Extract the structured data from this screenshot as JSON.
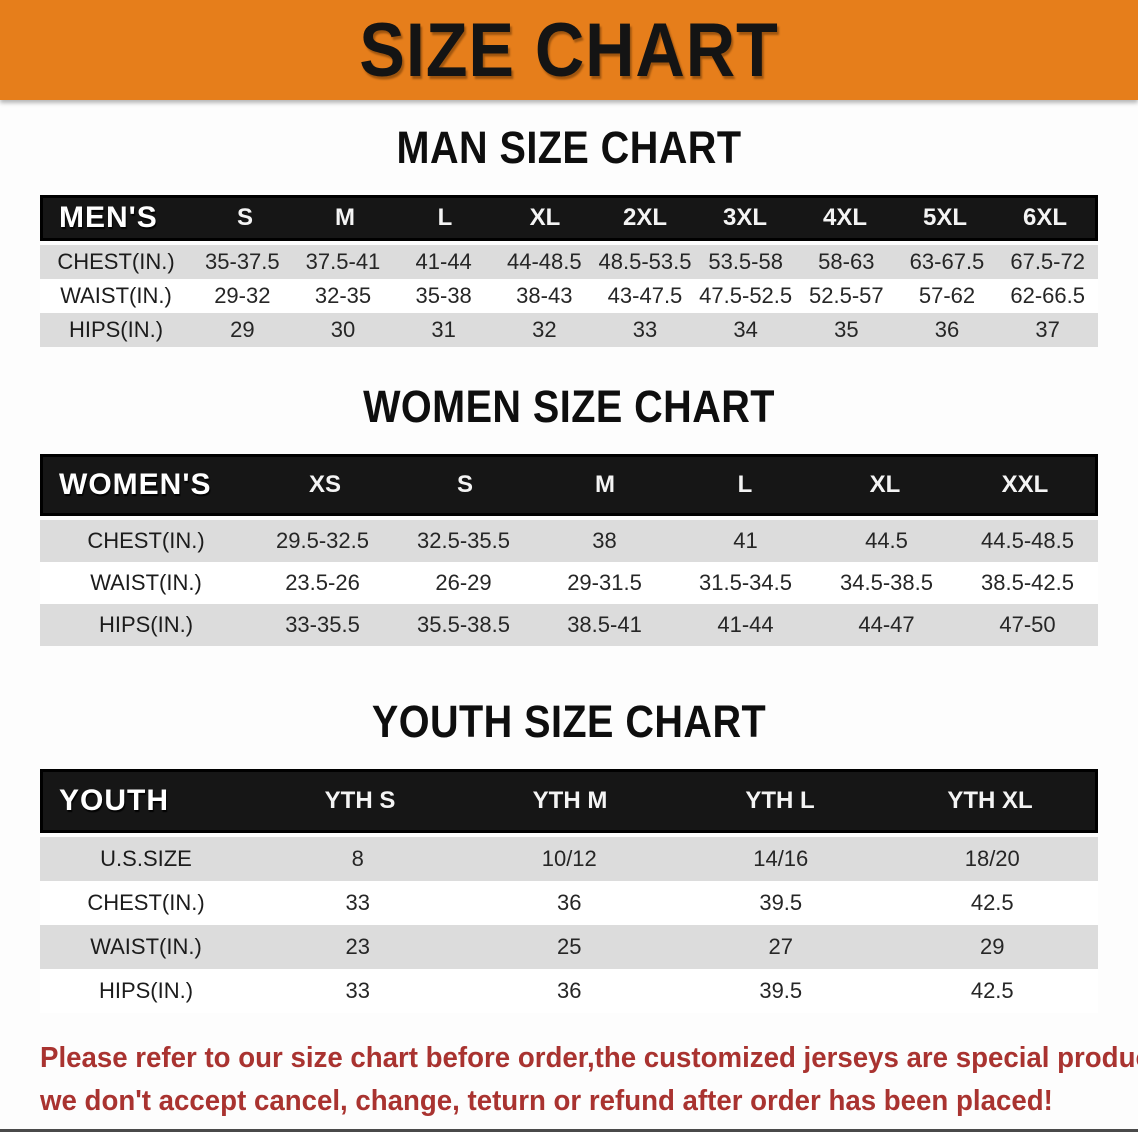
{
  "banner": {
    "title": "SIZE CHART"
  },
  "sections": [
    {
      "heading": "MAN SIZE CHART",
      "table": {
        "header_label": "MEN'S",
        "columns": [
          "S",
          "M",
          "L",
          "XL",
          "2XL",
          "3XL",
          "4XL",
          "5XL",
          "6XL"
        ],
        "rows": [
          {
            "label": "CHEST(IN.)",
            "values": [
              "35-37.5",
              "37.5-41",
              "41-44",
              "44-48.5",
              "48.5-53.5",
              "53.5-58",
              "58-63",
              "63-67.5",
              "67.5-72"
            ]
          },
          {
            "label": "WAIST(IN.)",
            "values": [
              "29-32",
              "32-35",
              "35-38",
              "38-43",
              "43-47.5",
              "47.5-52.5",
              "52.5-57",
              "57-62",
              "62-66.5"
            ]
          },
          {
            "label": "HIPS(IN.)",
            "values": [
              "29",
              "30",
              "31",
              "32",
              "33",
              "34",
              "35",
              "36",
              "37"
            ]
          }
        ]
      }
    },
    {
      "heading": "WOMEN SIZE CHART",
      "table": {
        "header_label": "WOMEN'S",
        "columns": [
          "XS",
          "S",
          "M",
          "L",
          "XL",
          "XXL"
        ],
        "rows": [
          {
            "label": "CHEST(IN.)",
            "values": [
              "29.5-32.5",
              "32.5-35.5",
              "38",
              "41",
              "44.5",
              "44.5-48.5"
            ]
          },
          {
            "label": "WAIST(IN.)",
            "values": [
              "23.5-26",
              "26-29",
              "29-31.5",
              "31.5-34.5",
              "34.5-38.5",
              "38.5-42.5"
            ]
          },
          {
            "label": "HIPS(IN.)",
            "values": [
              "33-35.5",
              "35.5-38.5",
              "38.5-41",
              "41-44",
              "44-47",
              "47-50"
            ]
          }
        ]
      }
    },
    {
      "heading": "YOUTH SIZE CHART",
      "table": {
        "header_label": "YOUTH",
        "columns": [
          "YTH S",
          "YTH M",
          "YTH L",
          "YTH XL"
        ],
        "rows": [
          {
            "label": "U.S.SIZE",
            "values": [
              "8",
              "10/12",
              "14/16",
              "18/20"
            ]
          },
          {
            "label": "CHEST(IN.)",
            "values": [
              "33",
              "36",
              "39.5",
              "42.5"
            ]
          },
          {
            "label": "WAIST(IN.)",
            "values": [
              "23",
              "25",
              "27",
              "29"
            ]
          },
          {
            "label": "HIPS(IN.)",
            "values": [
              "33",
              "36",
              "39.5",
              "42.5"
            ]
          }
        ]
      }
    }
  ],
  "footer": {
    "line1": "Please refer to our size chart before order,the customized jerseys are special products,",
    "line2": "we don't accept cancel, change, teturn or refund after order has been placed!"
  },
  "colors": {
    "accent_orange": "#E67E1B",
    "header_black": "#161616",
    "row_gray": "#DCDCDC",
    "note_red": "#A93330"
  }
}
